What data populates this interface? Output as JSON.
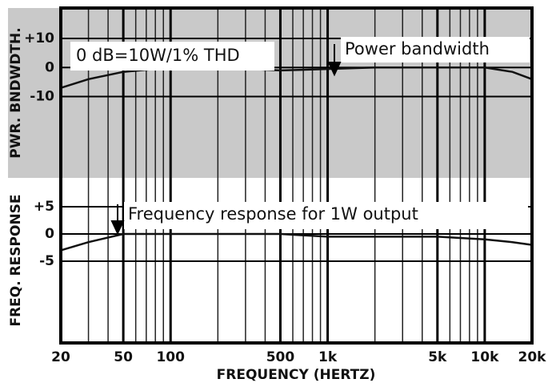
{
  "chart_data": [
    {
      "type": "line",
      "ylabel": "PWR. BNDWDTH.",
      "annotations": [
        "0 dB=10W/1% THD",
        "Power bandwidth"
      ],
      "x": [
        20,
        30,
        50,
        100,
        200,
        500,
        1000,
        2000,
        5000,
        10000,
        15000,
        20000
      ],
      "values": [
        -7,
        -4,
        -1.5,
        0,
        0,
        -1,
        -0.5,
        0,
        0,
        0,
        -1.5,
        -4
      ],
      "color": "#111111",
      "background": "#c9c9c9",
      "xlim": [
        20,
        20000
      ],
      "xscale": "log",
      "ylim": [
        -38,
        20.5
      ],
      "yticks": [
        {
          "value": 10,
          "label": "+10"
        },
        0,
        -10
      ],
      "grid": true
    },
    {
      "type": "line",
      "ylabel": "FREQ. RESPONSE",
      "xlabel": "FREQUENCY  (HERTZ)",
      "annotations": [
        "Frequency   response  for 1W  output"
      ],
      "x": [
        20,
        30,
        50,
        100,
        200,
        500,
        1000,
        2000,
        5000,
        10000,
        15000,
        20000
      ],
      "values": [
        -3,
        -1.5,
        0,
        0,
        0,
        0,
        -0.5,
        -0.5,
        -0.5,
        -1,
        -1.5,
        -2
      ],
      "color": "#111111",
      "background": "#ffffff",
      "xlim": [
        20,
        20000
      ],
      "xscale": "log",
      "xticks": [
        20,
        50,
        100,
        500,
        {
          "value": 1000,
          "label": "1k"
        },
        {
          "value": 5000,
          "label": "5k"
        },
        {
          "value": 10000,
          "label": "10k"
        },
        {
          "value": 20000,
          "label": "20k"
        }
      ],
      "ylim": [
        -20,
        10.3
      ],
      "yticks": [
        {
          "value": 5,
          "label": "+5"
        },
        0,
        -5
      ],
      "grid": true
    }
  ]
}
